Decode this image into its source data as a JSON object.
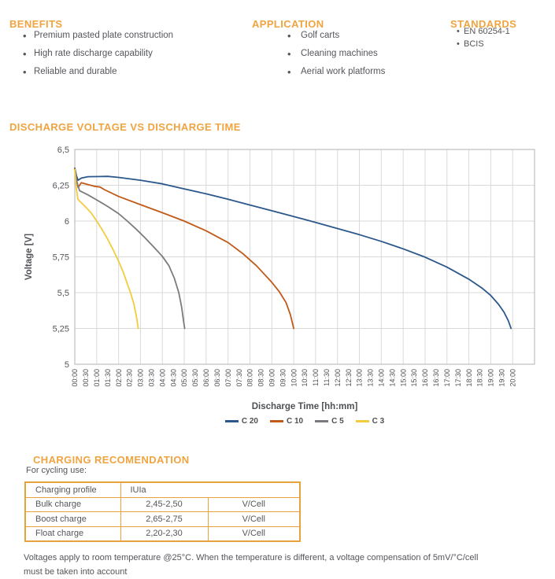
{
  "ui": {
    "bullet": "•"
  },
  "benefits": {
    "title": "BENEFITS",
    "items": [
      "Premium pasted plate construction",
      "High rate discharge capability",
      "Reliable and durable"
    ]
  },
  "application": {
    "title": "APPLICATION",
    "items": [
      "Golf carts",
      "Cleaning machines",
      "Aerial work platforms"
    ]
  },
  "standards": {
    "title": "STANDARDS",
    "items": [
      "EN 60254-1",
      "BCIS"
    ]
  },
  "chart_section": {
    "title": "DISCHARGE VOLTAGE VS DISCHARGE TIME"
  },
  "chart_data": {
    "type": "line",
    "title": "DISCHARGE VOLTAGE VS DISCHARGE TIME",
    "xlabel": "Discharge Time [hh:mm]",
    "ylabel": "Voltage [V]",
    "xlim_hours": [
      0,
      21
    ],
    "ylim": [
      5.0,
      6.5
    ],
    "grid": "vertical gridlines every 1 h, horizontal every 0.25 V",
    "legend_position": "bottom",
    "y_ticks": [
      {
        "v": 6.5,
        "label": "6,5"
      },
      {
        "v": 6.25,
        "label": "6,25"
      },
      {
        "v": 6.0,
        "label": "6"
      },
      {
        "v": 5.75,
        "label": "5,75"
      },
      {
        "v": 5.5,
        "label": "5,5"
      },
      {
        "v": 5.25,
        "label": "5,25"
      },
      {
        "v": 5.0,
        "label": "5"
      }
    ],
    "x_tick_step_hours": 0.5,
    "x_tick_labels": [
      "00:00",
      "00:30",
      "01:00",
      "01:30",
      "02:00",
      "02:30",
      "03:00",
      "03:30",
      "04:00",
      "04:30",
      "05:00",
      "05:30",
      "06:00",
      "06:30",
      "07:00",
      "07:30",
      "08:00",
      "08:30",
      "09:00",
      "09:30",
      "10:00",
      "10:30",
      "11:00",
      "11:30",
      "12:00",
      "12:30",
      "13:00",
      "13:30",
      "14:00",
      "14:30",
      "15:00",
      "15:30",
      "16:00",
      "16:30",
      "17:00",
      "17:30",
      "18:00",
      "18:30",
      "19:00",
      "19:30",
      "20:00"
    ],
    "series": [
      {
        "name": "C 20",
        "color": "#2B578A",
        "points": [
          [
            0,
            6.37
          ],
          [
            0.08,
            6.315
          ],
          [
            0.15,
            6.285
          ],
          [
            0.3,
            6.3
          ],
          [
            0.6,
            6.31
          ],
          [
            1.5,
            6.312
          ],
          [
            2,
            6.305
          ],
          [
            3,
            6.285
          ],
          [
            4,
            6.26
          ],
          [
            5,
            6.225
          ],
          [
            6,
            6.19
          ],
          [
            7,
            6.152
          ],
          [
            8,
            6.112
          ],
          [
            9,
            6.072
          ],
          [
            10,
            6.032
          ],
          [
            11,
            5.99
          ],
          [
            12,
            5.948
          ],
          [
            13,
            5.905
          ],
          [
            14,
            5.858
          ],
          [
            15,
            5.806
          ],
          [
            16,
            5.748
          ],
          [
            17,
            5.678
          ],
          [
            18,
            5.594
          ],
          [
            18.6,
            5.532
          ],
          [
            19,
            5.48
          ],
          [
            19.35,
            5.42
          ],
          [
            19.6,
            5.365
          ],
          [
            19.8,
            5.305
          ],
          [
            19.93,
            5.25
          ]
        ]
      },
      {
        "name": "C 10",
        "color": "#C05A1A",
        "points": [
          [
            0,
            6.365
          ],
          [
            0.08,
            6.29
          ],
          [
            0.15,
            6.235
          ],
          [
            0.3,
            6.268
          ],
          [
            0.6,
            6.255
          ],
          [
            0.9,
            6.243
          ],
          [
            1.15,
            6.238
          ],
          [
            1.35,
            6.22
          ],
          [
            2,
            6.172
          ],
          [
            3,
            6.115
          ],
          [
            4,
            6.058
          ],
          [
            5,
            6.0
          ],
          [
            6,
            5.932
          ],
          [
            7,
            5.85
          ],
          [
            7.7,
            5.77
          ],
          [
            8.3,
            5.688
          ],
          [
            9,
            5.572
          ],
          [
            9.35,
            5.505
          ],
          [
            9.65,
            5.43
          ],
          [
            9.85,
            5.345
          ],
          [
            10,
            5.25
          ]
        ]
      },
      {
        "name": "C 5",
        "color": "#7A7B7E",
        "points": [
          [
            0,
            6.36
          ],
          [
            0.1,
            6.27
          ],
          [
            0.22,
            6.212
          ],
          [
            0.6,
            6.183
          ],
          [
            1,
            6.148
          ],
          [
            1.5,
            6.102
          ],
          [
            2,
            6.052
          ],
          [
            2.4,
            6.0
          ],
          [
            2.8,
            5.944
          ],
          [
            3.2,
            5.884
          ],
          [
            3.6,
            5.82
          ],
          [
            4,
            5.754
          ],
          [
            4.3,
            5.688
          ],
          [
            4.55,
            5.6
          ],
          [
            4.75,
            5.5
          ],
          [
            4.88,
            5.4
          ],
          [
            4.97,
            5.3
          ],
          [
            5.02,
            5.25
          ]
        ]
      },
      {
        "name": "C 3",
        "color": "#F3CC3D",
        "points": [
          [
            0,
            6.36
          ],
          [
            0.06,
            6.24
          ],
          [
            0.14,
            6.152
          ],
          [
            0.3,
            6.128
          ],
          [
            0.5,
            6.098
          ],
          [
            0.75,
            6.056
          ],
          [
            1,
            6.0
          ],
          [
            1.25,
            5.94
          ],
          [
            1.5,
            5.874
          ],
          [
            1.75,
            5.8
          ],
          [
            2,
            5.72
          ],
          [
            2.2,
            5.648
          ],
          [
            2.4,
            5.562
          ],
          [
            2.55,
            5.498
          ],
          [
            2.7,
            5.42
          ],
          [
            2.82,
            5.33
          ],
          [
            2.9,
            5.25
          ]
        ]
      }
    ]
  },
  "charging": {
    "title": "CHARGING RECOMENDATION",
    "note": "For cycling use:",
    "table": {
      "profile_label": "Charging profile",
      "profile_value": "IUIa",
      "rows": [
        {
          "label": "Bulk charge",
          "value": "2,45-2,50",
          "unit": "V/Cell"
        },
        {
          "label": "Boost charge",
          "value": "2,65-2,75",
          "unit": "V/Cell"
        },
        {
          "label": "Float charge",
          "value": "2,20-2,30",
          "unit": "V/Cell"
        }
      ]
    }
  },
  "footer": {
    "line1": "Voltages apply to room temperature @25°C. When  the temperature is different, a voltage compensation of 5mV/°C/cell",
    "line2": "must be taken into account"
  },
  "colors": {
    "heading_orange": "#F0A440",
    "table_border_orange": "#E8A23B",
    "body_text": "#55565A",
    "gridline": "#D9D9D9",
    "plot_border": "#BDBDBD"
  }
}
